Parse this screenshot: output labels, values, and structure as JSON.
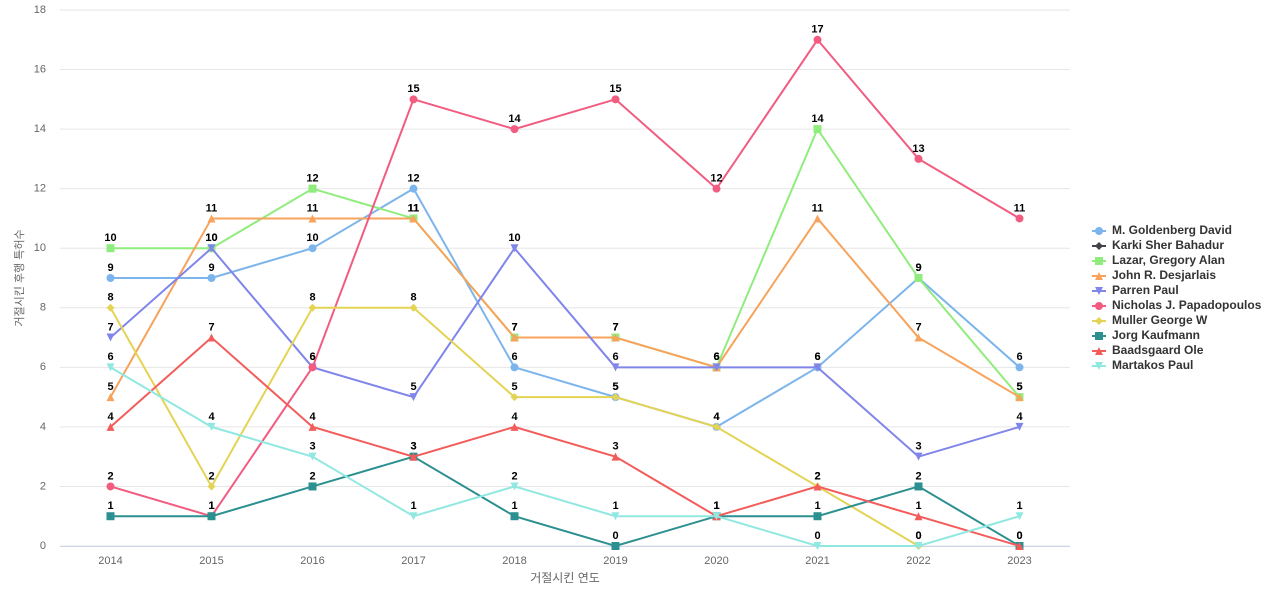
{
  "chart_data": {
    "type": "line",
    "ylabel": "거절시킨 후행 특허수",
    "xlabel": "거절시킨 연도",
    "categories": [
      "2014",
      "2015",
      "2016",
      "2017",
      "2018",
      "2019",
      "2020",
      "2021",
      "2022",
      "2023"
    ],
    "ylim": [
      0,
      18
    ],
    "yticks": [
      0,
      2,
      4,
      6,
      8,
      10,
      12,
      14,
      16,
      18
    ],
    "grid": true,
    "legend": "right",
    "series": [
      {
        "name": "M. Goldenberg David",
        "color": "#7cb5ec",
        "marker": "circle",
        "values": [
          9,
          9,
          10,
          12,
          6,
          5,
          4,
          6,
          9,
          6
        ]
      },
      {
        "name": "Karki Sher Bahadur",
        "color": "#434348",
        "marker": "diamond",
        "values": [
          null,
          null,
          null,
          null,
          null,
          null,
          null,
          null,
          null,
          null
        ]
      },
      {
        "name": "Lazar, Gregory Alan",
        "color": "#90ed7d",
        "marker": "square",
        "values": [
          10,
          10,
          12,
          11,
          7,
          7,
          6,
          14,
          9,
          5
        ]
      },
      {
        "name": "John R. Desjarlais",
        "color": "#f7a35c",
        "marker": "triangle",
        "values": [
          5,
          11,
          11,
          11,
          7,
          7,
          6,
          11,
          7,
          5
        ]
      },
      {
        "name": "Parren Paul",
        "color": "#8085e9",
        "marker": "triangle-down",
        "values": [
          7,
          10,
          6,
          5,
          10,
          6,
          6,
          6,
          3,
          4
        ]
      },
      {
        "name": "Nicholas J. Papadopoulos",
        "color": "#f15c80",
        "marker": "circle",
        "values": [
          2,
          1,
          6,
          15,
          14,
          15,
          12,
          17,
          13,
          11
        ]
      },
      {
        "name": "Muller George W",
        "color": "#e4d354",
        "marker": "diamond",
        "values": [
          8,
          2,
          8,
          8,
          5,
          5,
          4,
          2,
          0,
          null
        ]
      },
      {
        "name": "Jorg Kaufmann",
        "color": "#2b908f",
        "marker": "square",
        "values": [
          1,
          1,
          2,
          3,
          1,
          0,
          1,
          1,
          2,
          0
        ]
      },
      {
        "name": "Baadsgaard Ole",
        "color": "#f45b5b",
        "marker": "triangle",
        "values": [
          4,
          7,
          4,
          3,
          4,
          3,
          1,
          2,
          1,
          0
        ]
      },
      {
        "name": "Martakos Paul",
        "color": "#91e8e1",
        "marker": "triangle-down",
        "values": [
          6,
          4,
          3,
          1,
          2,
          1,
          1,
          0,
          0,
          1
        ]
      }
    ]
  }
}
